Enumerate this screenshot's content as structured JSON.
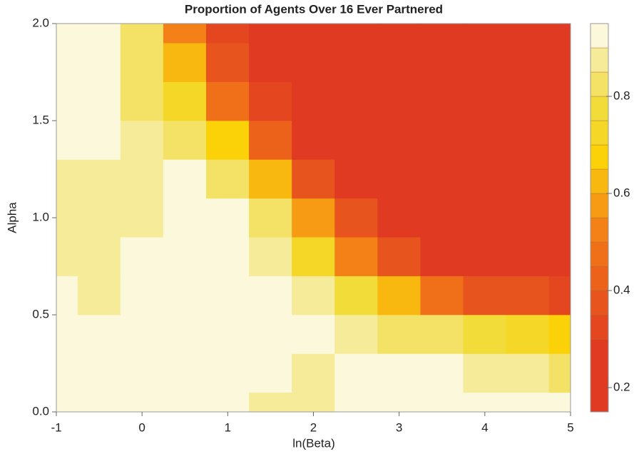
{
  "chart_data": {
    "type": "contour",
    "title": "Proportion of Agents Over 16 Ever Partnered",
    "xlabel": "ln(Beta)",
    "ylabel": "Alpha",
    "x": [
      -1,
      -0.5,
      0,
      0.5,
      1,
      1.5,
      2,
      2.5,
      3,
      3.5,
      4,
      4.5,
      5
    ],
    "y": [
      0,
      0.2,
      0.4,
      0.6,
      0.8,
      1.0,
      1.2,
      1.4,
      1.6,
      1.8,
      2.0
    ],
    "z": [
      [
        0.91,
        0.93,
        0.93,
        0.92,
        0.91,
        0.89,
        0.88,
        0.9,
        0.92,
        0.92,
        0.92,
        0.92,
        0.9
      ],
      [
        0.93,
        0.93,
        0.93,
        0.93,
        0.93,
        0.92,
        0.88,
        0.9,
        0.9,
        0.9,
        0.88,
        0.86,
        0.83
      ],
      [
        0.93,
        0.93,
        0.93,
        0.93,
        0.93,
        0.93,
        0.91,
        0.87,
        0.84,
        0.8,
        0.75,
        0.7,
        0.65
      ],
      [
        0.9,
        0.88,
        0.92,
        0.93,
        0.93,
        0.91,
        0.86,
        0.75,
        0.6,
        0.45,
        0.38,
        0.35,
        0.33
      ],
      [
        0.88,
        0.87,
        0.9,
        0.93,
        0.92,
        0.87,
        0.7,
        0.5,
        0.35,
        0.28,
        0.25,
        0.24,
        0.24
      ],
      [
        0.88,
        0.87,
        0.88,
        0.93,
        0.9,
        0.8,
        0.55,
        0.35,
        0.26,
        0.22,
        0.21,
        0.2,
        0.2
      ],
      [
        0.89,
        0.88,
        0.87,
        0.9,
        0.82,
        0.6,
        0.38,
        0.26,
        0.22,
        0.2,
        0.2,
        0.2,
        0.2
      ],
      [
        0.93,
        0.9,
        0.85,
        0.82,
        0.65,
        0.4,
        0.28,
        0.22,
        0.2,
        0.19,
        0.2,
        0.2,
        0.2
      ],
      [
        0.93,
        0.93,
        0.84,
        0.72,
        0.45,
        0.3,
        0.24,
        0.21,
        0.2,
        0.2,
        0.2,
        0.2,
        0.2
      ],
      [
        0.93,
        0.93,
        0.82,
        0.6,
        0.35,
        0.26,
        0.22,
        0.2,
        0.2,
        0.2,
        0.2,
        0.2,
        0.2
      ],
      [
        0.93,
        0.93,
        0.82,
        0.5,
        0.3,
        0.24,
        0.22,
        0.2,
        0.2,
        0.2,
        0.2,
        0.2,
        0.2
      ]
    ],
    "xlim": [
      -1,
      5
    ],
    "ylim": [
      0,
      2
    ],
    "xticks": [
      -1,
      0,
      1,
      2,
      3,
      4,
      5
    ],
    "yticks": [
      {
        "value": 0,
        "label": "0.0"
      },
      {
        "value": 0.5,
        "label": "0.5"
      },
      {
        "value": 1,
        "label": "1.0"
      },
      {
        "value": 1.5,
        "label": "1.5"
      },
      {
        "value": 2,
        "label": "2.0"
      }
    ],
    "levels": [
      0.15,
      0.3,
      0.35,
      0.4,
      0.45,
      0.5,
      0.55,
      0.6,
      0.65,
      0.7,
      0.75,
      0.8,
      0.85,
      0.9,
      0.95
    ],
    "colors": [
      "#e03a22",
      "#e4461f",
      "#e8541d",
      "#ec621b",
      "#f07019",
      "#f48018",
      "#f79a14",
      "#f9b80f",
      "#fbd208",
      "#f5d827",
      "#f1dc3a",
      "#f3e266",
      "#f6eb98",
      "#fcf8dc"
    ],
    "colorbar_ticks": [
      0.2,
      0.4,
      0.6,
      0.8
    ]
  }
}
